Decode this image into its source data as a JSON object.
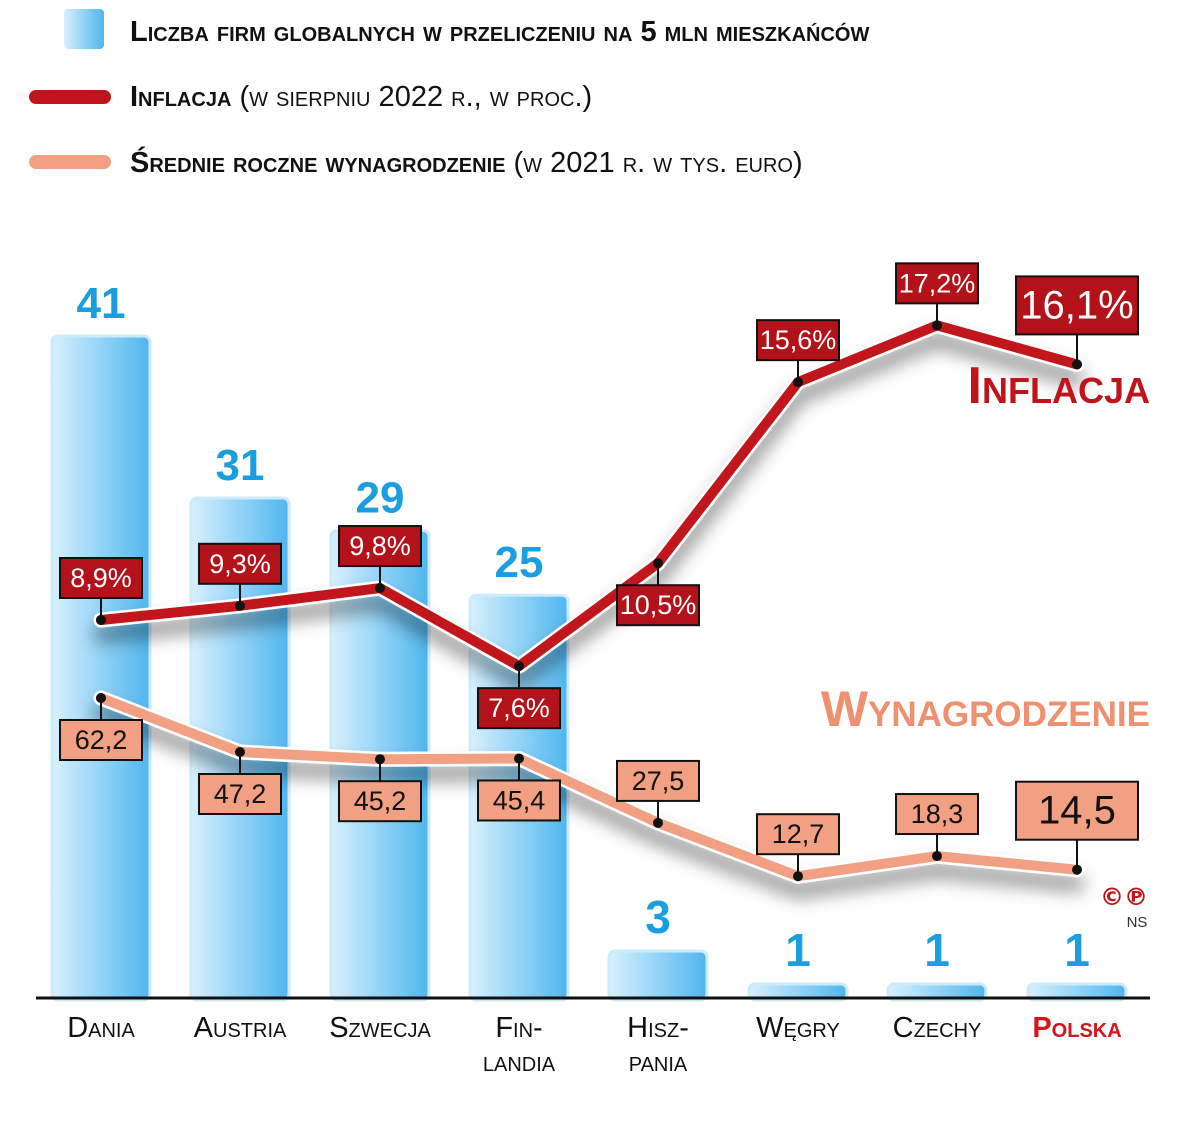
{
  "chart_data": {
    "type": "bar+line",
    "categories": [
      "Dania",
      "Austria",
      "Szwecja",
      "Fin-\nlandia",
      "Hisz-\npania",
      "Węgry",
      "Czechy",
      "Polska"
    ],
    "highlight_category": "Polska",
    "series": [
      {
        "name": "Liczba firm globalnych w przeliczeniu na 5 mln mieszkańców",
        "type": "bar",
        "values": [
          41,
          31,
          29,
          25,
          3,
          1,
          1,
          1
        ],
        "labels": [
          "41",
          "31",
          "29",
          "25",
          "3",
          "1",
          "1",
          "1"
        ]
      },
      {
        "name": "Inflacja",
        "type": "line",
        "values": [
          8.9,
          9.3,
          9.8,
          7.6,
          10.5,
          15.6,
          17.2,
          16.1
        ],
        "labels": [
          "8,9%",
          "9,3%",
          "9,8%",
          "7,6%",
          "10,5%",
          "15,6%",
          "17,2%",
          "16,1%"
        ],
        "label_positions": [
          "above",
          "above",
          "above",
          "below",
          "below",
          "above",
          "above",
          "above"
        ]
      },
      {
        "name": "Wynagrodzenie",
        "type": "line",
        "values": [
          62.2,
          47.2,
          45.2,
          45.4,
          27.5,
          12.7,
          18.3,
          14.5
        ],
        "labels": [
          "62,2",
          "47,2",
          "45,2",
          "45,4",
          "27,5",
          "12,7",
          "18,3",
          "14,5"
        ],
        "label_positions": [
          "below",
          "below",
          "below",
          "below",
          "above",
          "above",
          "above",
          "above"
        ]
      }
    ],
    "legend": [
      {
        "key": "bar",
        "bold": "Liczba firm globalnych w przeliczeniu na 5 mln mieszkańców",
        "rest": ""
      },
      {
        "key": "infl",
        "bold": "Inflacja",
        "rest": " (w sierpniu 2022 r., w proc.)"
      },
      {
        "key": "wage",
        "bold": "Średnie roczne wynagrodzenie",
        "rest": " (w 2021 r. w tys. euro)"
      }
    ],
    "annotations": {
      "inflacja_label": "Inflacja",
      "wynagrodzenie_label": "Wynagrodzenie"
    },
    "copyright": {
      "mark": "©℗",
      "initials": "NS"
    },
    "colors": {
      "bar_light": "#d6effd",
      "bar_dark": "#54b9ef",
      "bar_value": "#1a9ee0",
      "inflation": "#c0141c",
      "inflation_box": "#b3121a",
      "wage": "#f2a083",
      "wage_box": "#f2a083",
      "wage_label": "#ef9070",
      "highlight_text": "#d7141c"
    }
  }
}
